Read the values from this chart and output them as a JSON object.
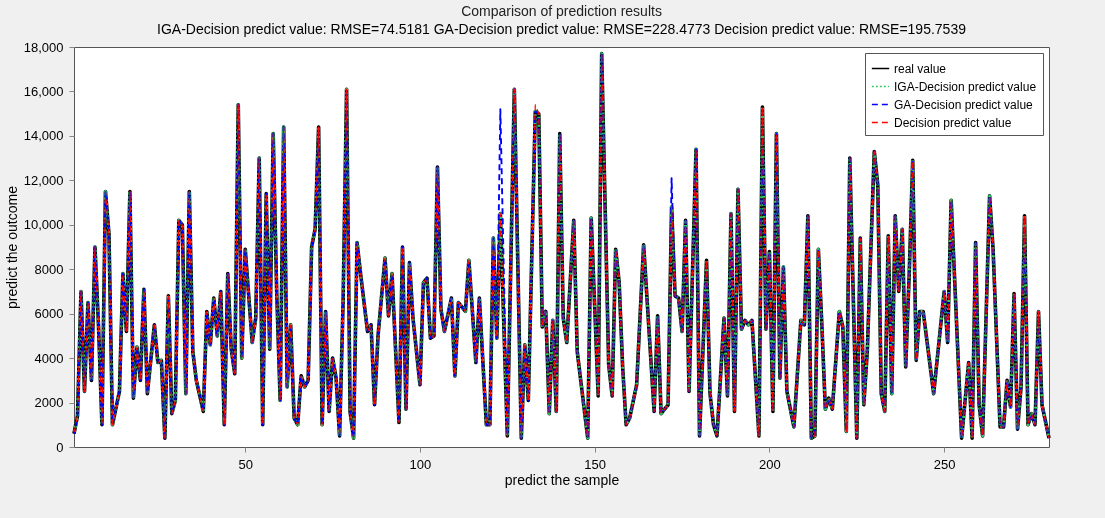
{
  "chart_data": {
    "type": "line",
    "title": "Comparison of prediction results",
    "subtitle": "IGA-Decision predict value: RMSE=74.5181  GA-Decision predict value: RMSE=228.4773  Decision predict value: RMSE=195.7539",
    "xlabel": "predict the sample",
    "ylabel": "predict the outcome",
    "x": [
      1,
      2,
      3,
      4,
      5,
      6,
      7,
      8,
      9,
      10,
      11,
      12,
      14,
      15,
      16,
      17,
      18,
      19,
      20,
      21,
      22,
      24,
      25,
      26,
      27,
      28,
      29,
      30,
      31,
      32,
      33,
      34,
      35,
      36,
      38,
      39,
      40,
      41,
      42,
      43,
      44,
      45,
      46,
      47,
      48,
      49,
      50,
      52,
      53,
      54,
      55,
      56,
      57,
      58,
      59,
      60,
      61,
      62,
      63,
      64,
      65,
      66,
      67,
      68,
      69,
      70,
      71,
      72,
      73,
      74,
      75,
      76,
      77,
      78,
      79,
      80,
      81,
      82,
      83,
      85,
      86,
      87,
      88,
      90,
      91,
      92,
      94,
      95,
      96,
      97,
      98,
      100,
      101,
      102,
      103,
      104,
      105,
      106,
      107,
      109,
      110,
      111,
      113,
      114,
      116,
      117,
      119,
      120,
      121,
      122,
      123,
      125,
      127,
      129,
      130,
      131,
      133,
      134,
      135,
      136,
      137,
      138,
      139,
      140,
      141,
      142,
      144,
      145,
      148,
      149,
      151,
      152,
      154,
      155,
      156,
      157,
      158,
      159,
      160,
      162,
      164,
      167,
      168,
      169,
      170,
      171,
      172,
      173,
      174,
      175,
      176,
      177,
      179,
      180,
      182,
      183,
      184,
      185,
      187,
      188,
      189,
      190,
      191,
      192,
      193,
      194,
      195,
      197,
      198,
      199,
      200,
      201,
      202,
      203,
      204,
      205,
      207,
      209,
      210,
      211,
      212,
      213,
      214,
      215,
      216,
      217,
      218,
      220,
      221,
      222,
      223,
      225,
      226,
      227,
      228,
      230,
      231,
      232,
      233,
      234,
      235,
      236,
      237,
      238,
      239,
      240,
      241,
      242,
      243,
      244,
      247,
      250,
      251,
      252,
      255,
      257,
      258,
      259,
      260,
      261,
      263,
      264,
      266,
      267,
      268,
      269,
      270,
      271,
      272,
      273,
      274,
      275,
      276,
      277,
      278,
      280
    ],
    "series": [
      {
        "name": "real value",
        "color": "#000000",
        "line_style": "solid",
        "values": [
          600,
          1400,
          7000,
          2500,
          6500,
          3000,
          9000,
          5500,
          1000,
          11500,
          9600,
          1000,
          2500,
          7800,
          5200,
          11500,
          2200,
          4500,
          3000,
          7100,
          2400,
          5500,
          3800,
          3900,
          400,
          6800,
          1500,
          2100,
          10200,
          10000,
          2400,
          11500,
          4300,
          3000,
          1600,
          6100,
          4600,
          6700,
          5000,
          7000,
          1000,
          7800,
          4400,
          3300,
          15400,
          4000,
          8900,
          4700,
          5800,
          13000,
          1000,
          11400,
          4400,
          14100,
          7000,
          2100,
          14400,
          2700,
          5500,
          1300,
          1000,
          3200,
          2700,
          3000,
          9000,
          9800,
          14400,
          1000,
          6100,
          1600,
          4000,
          3100,
          500,
          6500,
          16100,
          1600,
          400,
          9200,
          7800,
          5200,
          5500,
          1900,
          5000,
          8500,
          5900,
          7800,
          1100,
          9000,
          1700,
          8300,
          5800,
          2800,
          7400,
          7600,
          4900,
          5000,
          12600,
          6200,
          5200,
          6700,
          3200,
          6500,
          6100,
          8400,
          3800,
          6700,
          1000,
          1000,
          9400,
          4900,
          10500,
          500,
          16100,
          400,
          4600,
          2100,
          15100,
          15000,
          5400,
          6100,
          1500,
          5700,
          1600,
          14100,
          5800,
          4700,
          10200,
          4300,
          400,
          10300,
          2300,
          17700,
          3700,
          2300,
          8900,
          7400,
          3600,
          1000,
          1300,
          2800,
          9100,
          1600,
          5900,
          1500,
          1700,
          1900,
          10800,
          6800,
          6700,
          5200,
          10200,
          2500,
          13400,
          500,
          8400,
          2400,
          1000,
          500,
          5800,
          2300,
          10500,
          1600,
          11600,
          5300,
          5700,
          5500,
          5700,
          500,
          15300,
          5300,
          8800,
          1600,
          14100,
          3100,
          8100,
          2500,
          900,
          5700,
          5500,
          10400,
          400,
          500,
          8900,
          5500,
          1700,
          2200,
          1700,
          6100,
          5400,
          700,
          13000,
          400,
          9400,
          1900,
          4300,
          13300,
          11800,
          2400,
          1600,
          9500,
          2400,
          10400,
          7000,
          9800,
          3600,
          7800,
          12900,
          3900,
          6100,
          6100,
          2400,
          7000,
          4700,
          11100,
          400,
          3800,
          400,
          9200,
          1900,
          500,
          11300,
          8900,
          900,
          900,
          3000,
          1800,
          6900,
          800,
          2700,
          10400,
          1000,
          1500,
          1000,
          6100,
          1900,
          400
        ]
      },
      {
        "name": "IGA-Decision predict value",
        "color": "#33cc66",
        "line_style": "dotted",
        "values": [
          600,
          1400,
          7000,
          2500,
          6500,
          3000,
          9000,
          5500,
          1000,
          11500,
          9600,
          1000,
          2500,
          7800,
          5200,
          11500,
          2200,
          4500,
          3000,
          7100,
          2400,
          5500,
          3800,
          3900,
          400,
          6800,
          1500,
          2100,
          10200,
          10000,
          2400,
          11500,
          4300,
          3000,
          1600,
          6100,
          4600,
          6700,
          5000,
          7000,
          1000,
          7800,
          4400,
          3300,
          15400,
          4000,
          8900,
          4700,
          5800,
          13000,
          1000,
          11400,
          4400,
          14100,
          7000,
          2100,
          14400,
          2700,
          5500,
          1300,
          1000,
          3200,
          2700,
          3000,
          9000,
          9800,
          14400,
          1000,
          6100,
          1600,
          4000,
          3100,
          500,
          6500,
          16100,
          1600,
          400,
          9200,
          7800,
          5200,
          5500,
          1900,
          5000,
          8500,
          5900,
          7800,
          1100,
          9000,
          1700,
          8300,
          5800,
          2800,
          7400,
          7600,
          4900,
          5000,
          12600,
          6200,
          5200,
          6700,
          3200,
          6500,
          6100,
          8400,
          3800,
          6700,
          1000,
          1000,
          9400,
          4900,
          10500,
          500,
          16100,
          400,
          4600,
          2100,
          15100,
          15000,
          5400,
          6100,
          1500,
          5700,
          1600,
          14100,
          5800,
          4700,
          10200,
          4300,
          400,
          10300,
          2300,
          17700,
          3700,
          2300,
          8900,
          7400,
          3600,
          1000,
          1300,
          2800,
          9100,
          1600,
          5900,
          1500,
          1700,
          1900,
          10800,
          6800,
          6700,
          5200,
          10200,
          2500,
          13400,
          500,
          8400,
          2400,
          1000,
          500,
          5800,
          2300,
          10500,
          1600,
          11600,
          5300,
          5700,
          5500,
          5700,
          500,
          15300,
          5300,
          8800,
          1600,
          14100,
          3100,
          8100,
          2500,
          900,
          5700,
          5500,
          10400,
          400,
          500,
          8900,
          5500,
          1700,
          2200,
          1700,
          6100,
          5400,
          700,
          13000,
          400,
          9400,
          1900,
          4300,
          13300,
          11800,
          2400,
          1600,
          9500,
          2400,
          10400,
          7000,
          9800,
          3600,
          7800,
          12900,
          3900,
          6100,
          6100,
          2400,
          7000,
          4700,
          11100,
          400,
          3800,
          400,
          9200,
          1900,
          500,
          11300,
          8900,
          900,
          900,
          3000,
          1800,
          6900,
          800,
          2700,
          10400,
          1000,
          1500,
          1000,
          6100,
          1900,
          400
        ]
      },
      {
        "name": "GA-Decision predict value",
        "color": "#0000ff",
        "line_style": "dashed",
        "values": [
          600,
          1400,
          7000,
          2500,
          6500,
          3000,
          9000,
          5500,
          1000,
          11500,
          9600,
          1000,
          2500,
          7800,
          5200,
          11500,
          2200,
          4500,
          3000,
          7100,
          2400,
          5500,
          3800,
          3900,
          400,
          6800,
          1500,
          2100,
          10200,
          10000,
          2400,
          11500,
          4300,
          3000,
          1600,
          6100,
          4600,
          6700,
          5000,
          7000,
          1000,
          7800,
          4400,
          3300,
          15400,
          4000,
          8900,
          4700,
          5800,
          13000,
          1000,
          11400,
          4400,
          14100,
          7000,
          2100,
          14400,
          2700,
          5500,
          1300,
          1000,
          3200,
          2700,
          3000,
          9000,
          9800,
          14400,
          1000,
          6100,
          1600,
          4000,
          3100,
          500,
          6500,
          16100,
          1600,
          400,
          9200,
          7800,
          5200,
          5500,
          1900,
          5000,
          8500,
          5900,
          7800,
          1100,
          9000,
          1700,
          8300,
          5800,
          2800,
          7400,
          7600,
          4900,
          5000,
          12600,
          6200,
          5200,
          6700,
          3200,
          6500,
          6100,
          8400,
          3800,
          6700,
          1000,
          1000,
          9400,
          4900,
          15200,
          500,
          16100,
          400,
          4600,
          2100,
          15100,
          15000,
          5400,
          6100,
          1500,
          5700,
          1600,
          14100,
          5800,
          4700,
          10200,
          4300,
          400,
          10300,
          2300,
          17700,
          3700,
          2300,
          8900,
          7400,
          3600,
          1000,
          1300,
          2800,
          9100,
          1600,
          5900,
          1500,
          1700,
          1900,
          12100,
          6800,
          6700,
          5200,
          10200,
          2500,
          13400,
          500,
          8400,
          2400,
          1000,
          500,
          5800,
          2300,
          10500,
          1600,
          11600,
          5300,
          5700,
          5500,
          5700,
          500,
          15300,
          5300,
          8800,
          1600,
          14100,
          3100,
          8100,
          2500,
          900,
          5700,
          5500,
          10400,
          400,
          500,
          8900,
          5500,
          1700,
          2200,
          1700,
          6100,
          5400,
          700,
          13000,
          400,
          9400,
          1900,
          4300,
          13300,
          11800,
          2400,
          1600,
          9500,
          2400,
          10400,
          7000,
          9800,
          3600,
          7800,
          12900,
          3900,
          6100,
          6100,
          2400,
          7000,
          4700,
          11100,
          400,
          3800,
          400,
          9200,
          1900,
          500,
          11300,
          8900,
          900,
          900,
          3000,
          1800,
          6900,
          800,
          2700,
          10400,
          1000,
          1500,
          1000,
          6100,
          1900,
          400
        ]
      },
      {
        "name": "Decision predict value",
        "color": "#ff0000",
        "line_style": "dashed",
        "values": [
          600,
          1400,
          7000,
          2500,
          6500,
          3000,
          9000,
          5500,
          1000,
          11500,
          9600,
          1000,
          2500,
          7800,
          5200,
          11500,
          2200,
          4500,
          3000,
          7100,
          2400,
          5500,
          3800,
          3900,
          400,
          6800,
          1500,
          2100,
          10200,
          10000,
          2400,
          11500,
          4300,
          3000,
          1600,
          6100,
          4600,
          6700,
          5000,
          7000,
          1000,
          7800,
          4400,
          3300,
          15400,
          4000,
          8900,
          4700,
          5800,
          13000,
          1000,
          11400,
          4400,
          14100,
          7000,
          2100,
          14400,
          2700,
          5500,
          1300,
          1000,
          3200,
          2700,
          3000,
          9000,
          9800,
          14400,
          1000,
          6100,
          1600,
          4000,
          3100,
          500,
          6500,
          16100,
          1600,
          400,
          9200,
          7800,
          5200,
          5500,
          1900,
          5000,
          8500,
          5900,
          7800,
          1100,
          9000,
          1700,
          8300,
          5800,
          2800,
          7400,
          7600,
          4900,
          5000,
          12600,
          6200,
          5200,
          6700,
          3200,
          6500,
          6100,
          8400,
          3800,
          6700,
          1000,
          1000,
          9400,
          4900,
          10500,
          500,
          16100,
          400,
          4600,
          2100,
          15400,
          15000,
          5400,
          6100,
          1500,
          5700,
          1600,
          14100,
          5800,
          4700,
          10200,
          4300,
          400,
          10300,
          2300,
          17700,
          3700,
          2300,
          8900,
          7400,
          3600,
          1000,
          1300,
          2800,
          9100,
          1600,
          5900,
          1500,
          1700,
          1900,
          10800,
          6800,
          6700,
          5200,
          10200,
          2500,
          13400,
          500,
          8400,
          2400,
          1000,
          500,
          5800,
          2300,
          10500,
          1600,
          11600,
          5300,
          5700,
          5500,
          5700,
          500,
          15300,
          5300,
          8800,
          1600,
          14100,
          3100,
          8100,
          2500,
          900,
          5700,
          5500,
          10400,
          400,
          500,
          8900,
          5500,
          1700,
          2200,
          1700,
          6100,
          5400,
          700,
          13000,
          400,
          9400,
          1900,
          4300,
          13300,
          11800,
          2400,
          1600,
          9500,
          2400,
          10400,
          7000,
          9800,
          3600,
          7800,
          12900,
          3900,
          6100,
          6100,
          2400,
          7000,
          4700,
          11100,
          400,
          3800,
          400,
          9200,
          1900,
          500,
          11300,
          8900,
          900,
          900,
          3000,
          1800,
          6900,
          800,
          2700,
          10400,
          1000,
          1500,
          1000,
          6100,
          1900,
          400
        ]
      }
    ],
    "xlim": [
      1,
      280
    ],
    "xticks": [
      50,
      100,
      150,
      200,
      250
    ],
    "ylim": [
      0,
      18000
    ],
    "yticks": [
      0,
      2000,
      4000,
      6000,
      8000,
      {
        "value": 10000,
        "label": "10,000"
      },
      {
        "value": 12000,
        "label": "12,000"
      },
      {
        "value": 14000,
        "label": "14,000"
      },
      {
        "value": 16000,
        "label": "16,000"
      },
      {
        "value": 18000,
        "label": "18,000"
      }
    ],
    "grid": false,
    "legend": "top right",
    "marker": "none"
  }
}
